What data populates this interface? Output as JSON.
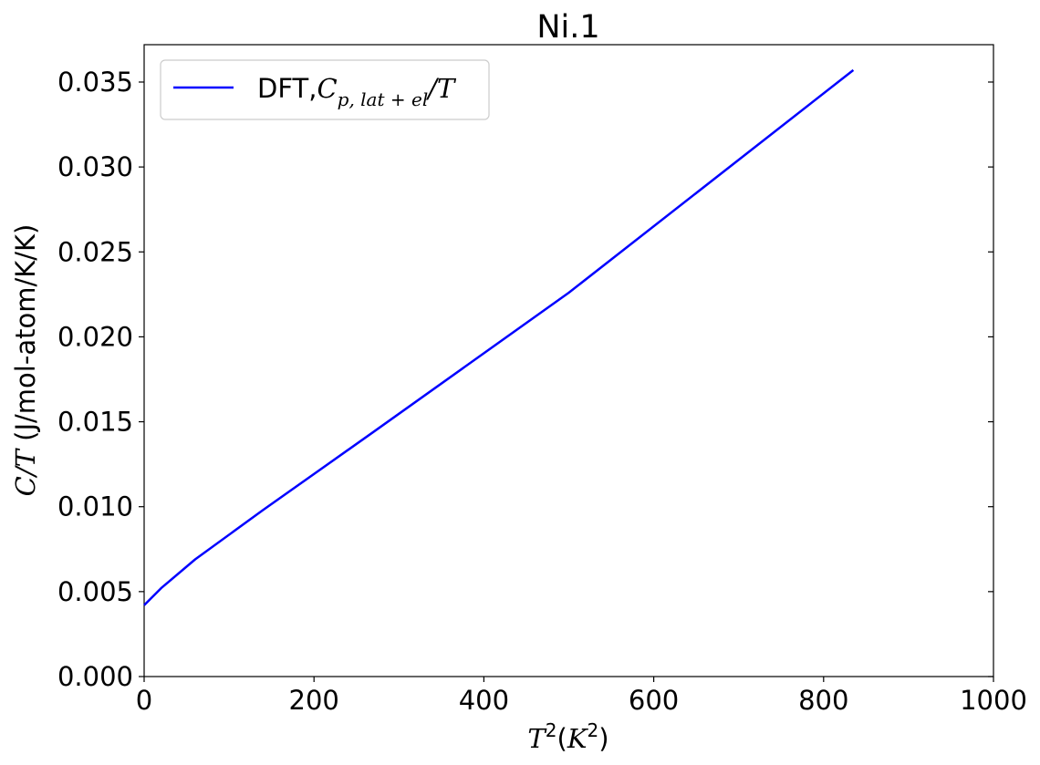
{
  "chart_data": {
    "type": "line",
    "title": "Ni.1",
    "xlabel": {
      "main": "T",
      "sup": "2",
      "open": "(",
      "unit": "K",
      "unit_sup": "2",
      "close": ")"
    },
    "ylabel": {
      "var": "C/T",
      "unit": " (J/mol-atom/K/K)"
    },
    "xlim": [
      0,
      1000
    ],
    "ylim": [
      0,
      0.0372
    ],
    "xticks": [
      0,
      200,
      400,
      600,
      800,
      1000
    ],
    "xtick_labels": [
      "0",
      "200",
      "400",
      "600",
      "800",
      "1000"
    ],
    "yticks": [
      0,
      0.005,
      0.01,
      0.015,
      0.02,
      0.025,
      0.03,
      0.035
    ],
    "ytick_labels": [
      "0.000",
      "0.005",
      "0.010",
      "0.015",
      "0.020",
      "0.025",
      "0.030",
      "0.035"
    ],
    "grid": false,
    "legend_position": "top-left",
    "series": [
      {
        "name": "DFT,C_{p,lat+el}/T",
        "legend": {
          "prefix": "DFT,",
          "var": "C",
          "sub": "p, lat + el",
          "suffix": "/T"
        },
        "color": "#0000ff",
        "x": [
          0,
          20,
          60,
          140,
          270,
          500,
          835
        ],
        "y": [
          0.0042,
          0.0052,
          0.0069,
          0.0098,
          0.0144,
          0.0226,
          0.0357
        ]
      }
    ]
  }
}
